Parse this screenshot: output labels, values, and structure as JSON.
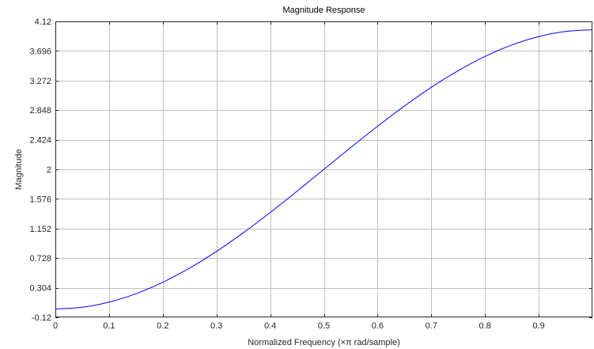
{
  "chart_data": {
    "type": "line",
    "title": "Magnitude Response",
    "xlabel": "Normalized Frequency (×π rad/sample)",
    "ylabel": "Magnitude",
    "xlim": [
      0,
      1
    ],
    "ylim": [
      -0.12,
      4.12
    ],
    "x_ticks": [
      0,
      0.1,
      0.2,
      0.3,
      0.4,
      0.5,
      0.6,
      0.7,
      0.8,
      0.9
    ],
    "x_tick_labels": [
      "0",
      "0.1",
      "0.2",
      "0.3",
      "0.4",
      "0.5",
      "0.6",
      "0.7",
      "0.8",
      "0.9"
    ],
    "y_ticks": [
      -0.12,
      0.304,
      0.728,
      1.152,
      1.576,
      2,
      2.424,
      2.848,
      3.272,
      3.696,
      4.12
    ],
    "y_tick_labels": [
      "-0.12",
      "0.304",
      "0.728",
      "1.152",
      "1.576",
      "2",
      "2.424",
      "2.848",
      "3.272",
      "3.696",
      "4.12"
    ],
    "grid": true,
    "line_color": "#0000ff",
    "grid_color": "#c0c0c0",
    "series": [
      {
        "x": [
          0,
          0.05,
          0.1,
          0.15,
          0.2,
          0.25,
          0.3,
          0.35,
          0.4,
          0.45,
          0.5,
          0.55,
          0.6,
          0.65,
          0.7,
          0.75,
          0.8,
          0.85,
          0.9,
          0.95,
          1.0
        ],
        "values": [
          0.0,
          0.025,
          0.098,
          0.218,
          0.382,
          0.586,
          0.824,
          1.092,
          1.382,
          1.687,
          2.0,
          2.313,
          2.618,
          2.908,
          3.176,
          3.414,
          3.618,
          3.782,
          3.902,
          3.975,
          4.0
        ]
      }
    ]
  }
}
